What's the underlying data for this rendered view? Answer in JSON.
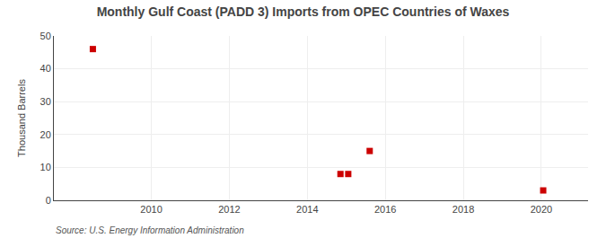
{
  "chart_data": {
    "type": "scatter",
    "title": "Monthly Gulf Coast (PADD 3) Imports from OPEC Countries of Waxes",
    "y_label": "Thousand Barrels",
    "annotations": [
      "Source: U.S. Energy Information Administration"
    ],
    "x": [
      2008.5,
      2014.85,
      2015.05,
      2015.6,
      2020.05
    ],
    "values": [
      46,
      8,
      8,
      15,
      3
    ],
    "color": "#cc0000",
    "marker": "square",
    "xlim": [
      2007.5,
      2021.2
    ],
    "xticks": [
      2010,
      2012,
      2014,
      2016,
      2018,
      2020
    ],
    "ylim": [
      0,
      50
    ],
    "yticks": [
      0,
      10,
      20,
      30,
      40,
      50
    ],
    "grid": true
  }
}
